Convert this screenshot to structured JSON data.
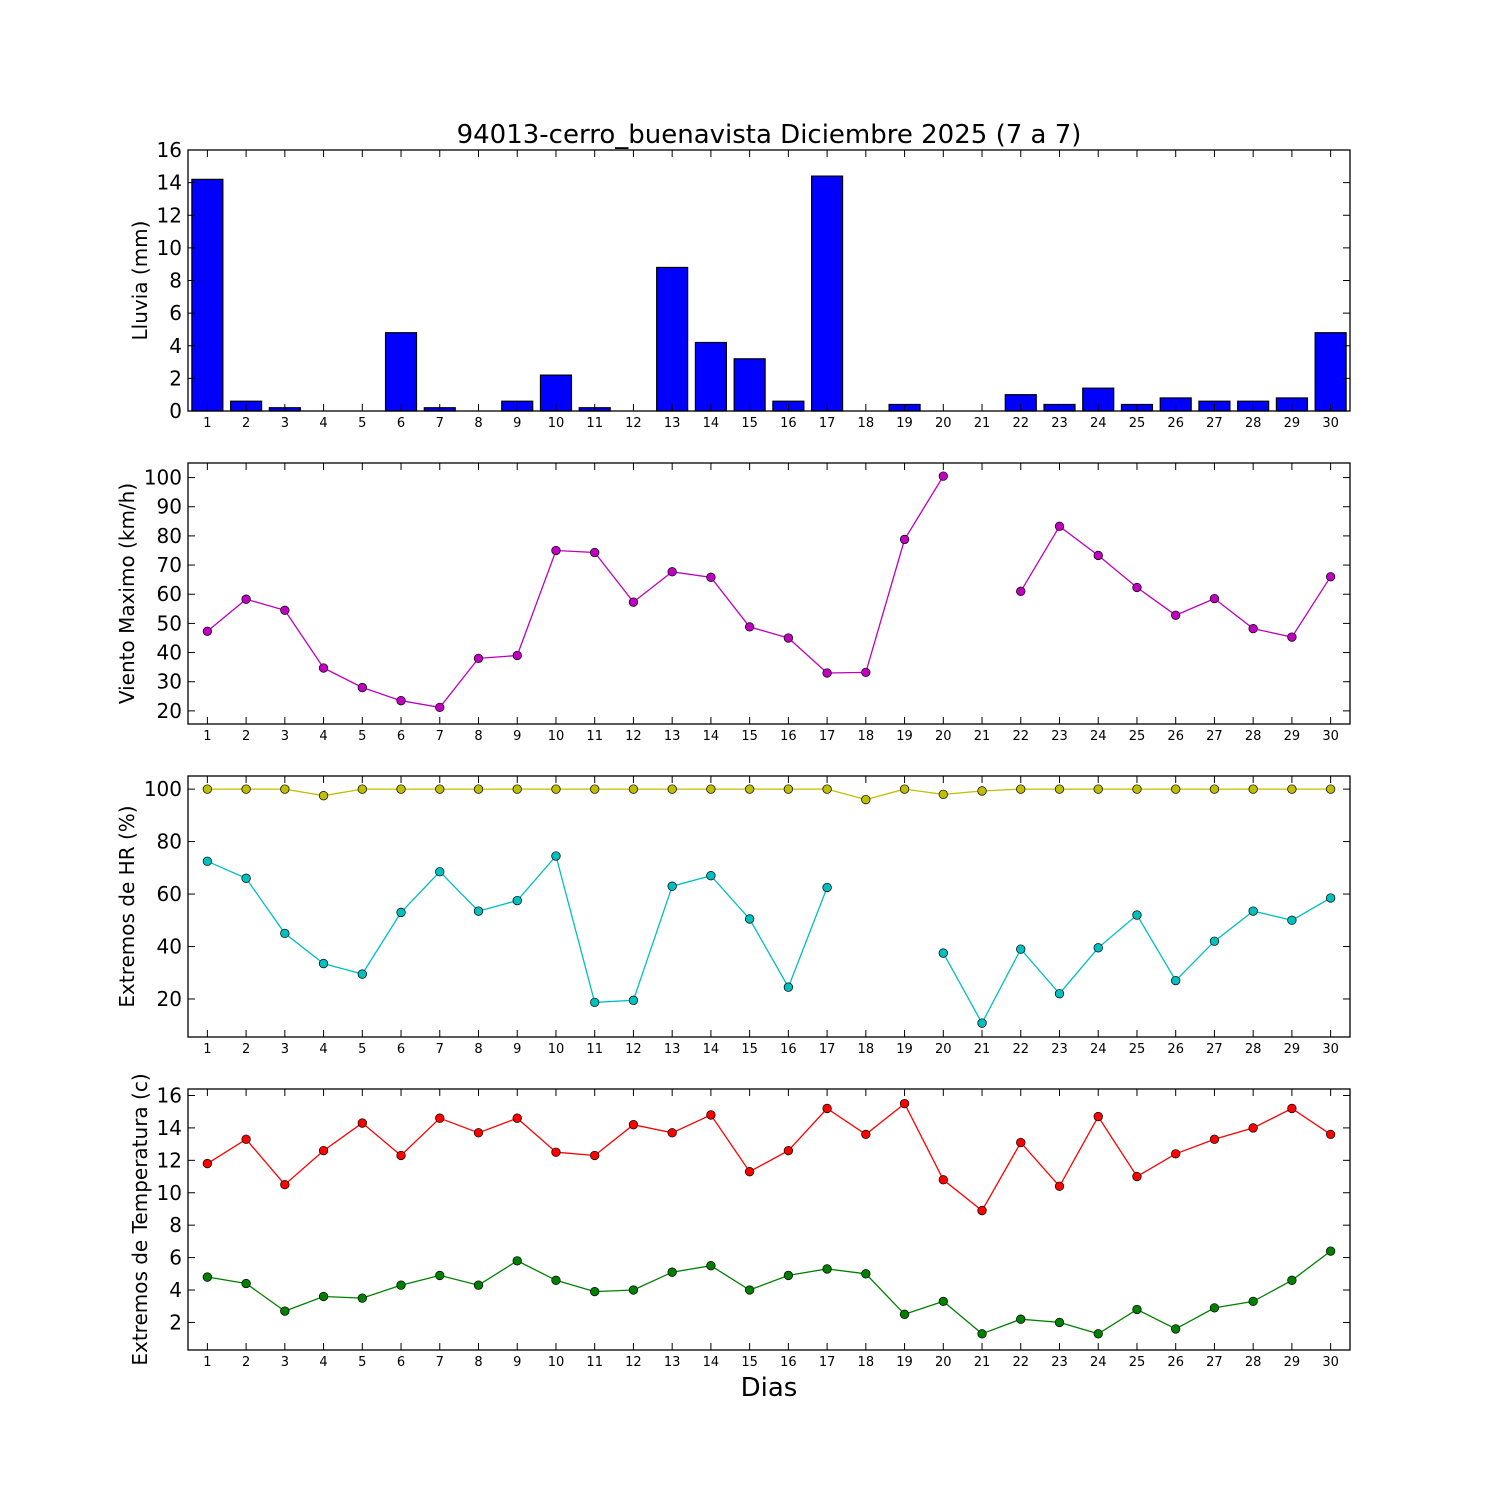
{
  "chart_data": {
    "title": "94013-cerro_buenavista Diciembre 2025  (7 a 7)",
    "xlabel": "Dias",
    "days": [
      1,
      2,
      3,
      4,
      5,
      6,
      7,
      8,
      9,
      10,
      11,
      12,
      13,
      14,
      15,
      16,
      17,
      18,
      19,
      20,
      21,
      22,
      23,
      24,
      25,
      26,
      27,
      28,
      29,
      30
    ],
    "panels": [
      {
        "type": "bar",
        "ylabel": "Lluvia (mm)",
        "ylim": [
          0,
          16
        ],
        "yticks": [
          0,
          2,
          4,
          6,
          8,
          10,
          12,
          14,
          16
        ],
        "series": [
          {
            "name": "Lluvia",
            "color": "#0000ff",
            "values": [
              14.2,
              0.6,
              0.2,
              0,
              0,
              4.8,
              0.2,
              0,
              0.6,
              2.2,
              0.2,
              0,
              8.8,
              4.2,
              3.2,
              0.6,
              14.4,
              0,
              0.4,
              0,
              0,
              1.0,
              0.4,
              1.4,
              0.4,
              0.8,
              0.6,
              0.6,
              0.8,
              4.8
            ]
          }
        ]
      },
      {
        "type": "line",
        "ylabel": "Viento Maximo (km/h)",
        "ylim": [
          15.5,
          105
        ],
        "yticks": [
          20,
          30,
          40,
          50,
          60,
          70,
          80,
          90,
          100
        ],
        "series": [
          {
            "name": "Viento maximo",
            "color": "#bf00bf",
            "values": [
              47.3,
              58.3,
              54.5,
              34.7,
              28,
              23.5,
              21.2,
              38,
              39,
              75,
              74.3,
              57.3,
              67.7,
              65.8,
              48.8,
              45,
              33,
              33.2,
              78.8,
              100.5,
              null,
              61,
              83.3,
              73.3,
              62.3,
              52.8,
              58.5,
              48.2,
              45.3,
              66
            ]
          }
        ]
      },
      {
        "type": "line",
        "ylabel": "Extremos de HR (%)",
        "ylim": [
          5.5,
          105
        ],
        "yticks": [
          20,
          40,
          60,
          80,
          100
        ],
        "series": [
          {
            "name": "HR maxima",
            "color": "#bfbf00",
            "values": [
              100,
              100,
              100,
              97.5,
              100,
              100,
              100,
              100,
              100,
              100,
              100,
              100,
              100,
              100,
              100,
              100,
              100,
              96,
              100,
              98,
              99.3,
              100,
              100,
              100,
              100,
              100,
              100,
              100,
              100,
              100
            ]
          },
          {
            "name": "HR minima",
            "color": "#00bfbf",
            "values": [
              72.5,
              66,
              45,
              33.5,
              29.5,
              53,
              68.5,
              53.5,
              57.5,
              74.5,
              18.7,
              19.5,
              63,
              67,
              50.5,
              24.5,
              62.5,
              null,
              null,
              37.5,
              10.8,
              39,
              22,
              39.5,
              52,
              27,
              42,
              53.5,
              50,
              58.5
            ]
          }
        ]
      },
      {
        "type": "line",
        "ylabel": "Extremos de Temperatura (c)",
        "ylim": [
          0.3,
          16.4
        ],
        "yticks": [
          2,
          4,
          6,
          8,
          10,
          12,
          14,
          16
        ],
        "series": [
          {
            "name": "Temperatura maxima",
            "color": "#ff0000",
            "values": [
              11.8,
              13.3,
              10.5,
              12.6,
              14.3,
              12.3,
              14.6,
              13.7,
              14.6,
              12.5,
              12.3,
              14.2,
              13.7,
              14.8,
              11.3,
              12.6,
              15.2,
              13.6,
              15.5,
              10.8,
              8.9,
              13.1,
              10.4,
              14.7,
              11.0,
              12.4,
              13.3,
              14.0,
              15.2,
              13.6
            ]
          },
          {
            "name": "Temperatura minima",
            "color": "#008000",
            "values": [
              4.8,
              4.4,
              2.7,
              3.6,
              3.5,
              4.3,
              4.9,
              4.3,
              5.8,
              4.6,
              3.9,
              4.0,
              5.1,
              5.5,
              4.0,
              4.9,
              5.3,
              5.0,
              2.5,
              3.3,
              1.3,
              2.2,
              2.0,
              1.3,
              2.8,
              1.6,
              2.9,
              3.3,
              4.6,
              6.4
            ]
          }
        ]
      }
    ]
  }
}
